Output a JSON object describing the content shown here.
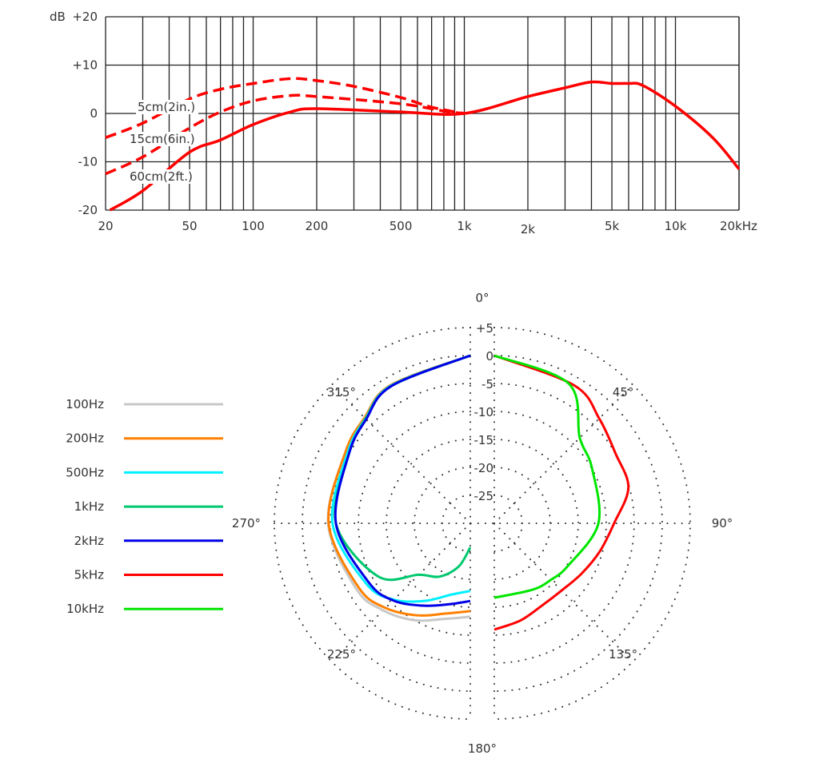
{
  "chart_data": [
    {
      "type": "line",
      "xscale": "log",
      "xlim": [
        20,
        20000
      ],
      "ylim": [
        -20,
        20
      ],
      "grid": true,
      "ylabel": "dB",
      "y_ticks": [
        "+20",
        "+10",
        "0",
        "-10",
        "-20"
      ],
      "y_tick_values": [
        20,
        10,
        0,
        -10,
        -20
      ],
      "x_ticks": [
        "20",
        "50",
        "100",
        "200",
        "500",
        "1k",
        "2k",
        "5k",
        "10k",
        "20kHz"
      ],
      "x_tick_values": [
        20,
        50,
        100,
        200,
        500,
        1000,
        2000,
        5000,
        10000,
        20000
      ],
      "color": "#ff0000",
      "series": [
        {
          "name": "5cm(2in.)",
          "style": "dashed",
          "x": [
            20,
            30,
            50,
            70,
            100,
            150,
            200,
            300,
            500,
            700,
            1000
          ],
          "y": [
            -5,
            -2,
            3,
            5,
            6.2,
            7.2,
            6.8,
            5.6,
            3.3,
            1.3,
            0
          ]
        },
        {
          "name": "15cm(6in.)",
          "style": "dashed",
          "x": [
            20,
            30,
            50,
            70,
            100,
            150,
            200,
            500,
            800,
            1000
          ],
          "y": [
            -12.5,
            -9,
            -3,
            0.3,
            2.6,
            3.7,
            3.5,
            2,
            0.5,
            0
          ]
        },
        {
          "name": "60cm(2ft.)",
          "style": "solid",
          "x": [
            21,
            30,
            50,
            70,
            100,
            150,
            200,
            500,
            1000,
            2000,
            3000,
            4000,
            5000,
            6000,
            7000,
            10000,
            15000,
            20000
          ],
          "y": [
            -20,
            -16,
            -8,
            -5.5,
            -2.3,
            0.3,
            1,
            0.3,
            0,
            3.5,
            5.3,
            6.5,
            6.2,
            6.2,
            5.8,
            1.5,
            -5,
            -11.5
          ]
        }
      ]
    },
    {
      "type": "polar",
      "rlim": [
        -30,
        5
      ],
      "r_ticks": [
        "+5",
        "0",
        "-5",
        "-10",
        "-15",
        "-20",
        "-25"
      ],
      "r_tick_values": [
        5,
        0,
        -5,
        -10,
        -15,
        -20,
        -25
      ],
      "angle_ticks": [
        "0°",
        "45°",
        "90°",
        "135°",
        "180°",
        "225°",
        "270°",
        "315°"
      ],
      "angle_tick_values": [
        0,
        45,
        90,
        135,
        180,
        225,
        270,
        315
      ],
      "legend": "left",
      "series": [
        {
          "name": "100Hz",
          "color": "#c8c8c8",
          "side": "left",
          "angle": [
            360,
            330,
            315,
            300,
            270,
            240,
            225,
            210,
            195,
            180
          ],
          "db": [
            0,
            -1.5,
            -3.3,
            -4.3,
            -4.6,
            -6.5,
            -8,
            -10,
            -12.3,
            -13.3
          ]
        },
        {
          "name": "200Hz",
          "color": "#ff8000",
          "side": "left",
          "angle": [
            360,
            330,
            315,
            300,
            270,
            240,
            225,
            210,
            195,
            180
          ],
          "db": [
            0,
            -1.5,
            -3.3,
            -4.3,
            -4.7,
            -7,
            -8.6,
            -11,
            -13.3,
            -14.3
          ]
        },
        {
          "name": "500Hz",
          "color": "#00f0ff",
          "side": "left",
          "angle": [
            360,
            330,
            315,
            300,
            270,
            240,
            225,
            210,
            195,
            180
          ],
          "db": [
            0,
            -1.6,
            -3.5,
            -4.7,
            -5.4,
            -8.5,
            -10.7,
            -14,
            -16.8,
            -17.9
          ]
        },
        {
          "name": "1kHz",
          "color": "#00c86e",
          "side": "left",
          "angle": [
            360,
            330,
            315,
            300,
            270,
            240,
            225,
            210,
            195,
            180
          ],
          "db": [
            0,
            -1.7,
            -3.6,
            -5,
            -6,
            -11,
            -17,
            -19,
            -22,
            -25.7
          ]
        },
        {
          "name": "2kHz",
          "color": "#0000e6",
          "side": "left",
          "angle": [
            360,
            330,
            315,
            300,
            270,
            240,
            225,
            210,
            195,
            180
          ],
          "db": [
            0,
            -1.7,
            -3.7,
            -5,
            -6,
            -9,
            -10.5,
            -13,
            -15,
            -16.1
          ]
        },
        {
          "name": "5kHz",
          "color": "#ff0000",
          "side": "right",
          "angle": [
            0,
            30,
            45,
            60,
            75,
            90,
            105,
            120,
            135,
            150,
            165,
            180
          ],
          "db": [
            0,
            -1.5,
            -3.5,
            -5,
            -5.2,
            -8.6,
            -10.5,
            -12,
            -13,
            -13,
            -12,
            -11
          ]
        },
        {
          "name": "10kHz",
          "color": "#00e600",
          "side": "right",
          "angle": [
            0,
            28,
            45,
            60,
            90,
            120,
            135,
            150,
            180
          ],
          "db": [
            0,
            -1.7,
            -8.4,
            -9.9,
            -11.4,
            -14.8,
            -15.7,
            -16.3,
            -16.7
          ]
        }
      ]
    }
  ]
}
